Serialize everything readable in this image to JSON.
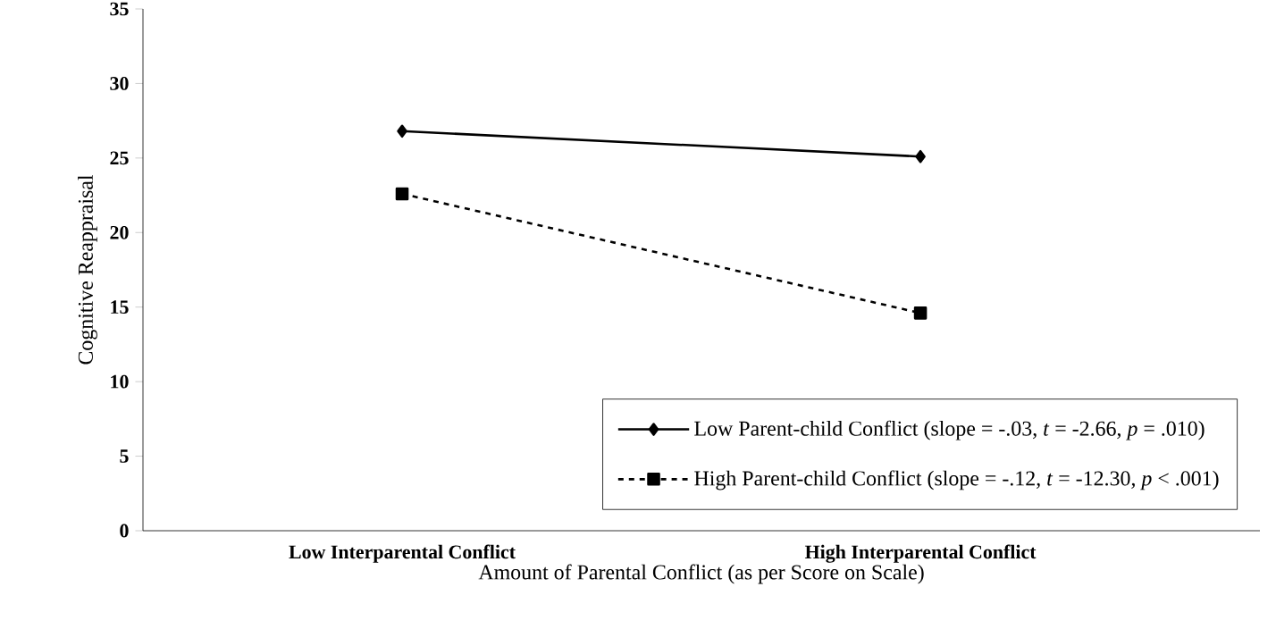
{
  "chart_data": {
    "type": "line",
    "xlabel": "Amount  of Parental Conflict (as per Score on Scale)",
    "ylabel": "Cognitive Reappraisal",
    "categories": [
      "Low Interparental Conflict",
      "High Interparental Conflict"
    ],
    "series": [
      {
        "name": "Low Parent-child Conflict (slope = -.03, *t* = -2.66, *p* = .010)",
        "color": "#000000",
        "values": [
          26.8,
          25.1
        ],
        "marker": "diamond",
        "line_style": "solid"
      },
      {
        "name": "High Parent-child Conflict (slope = -.12, *t* = -12.30, *p* < .001)",
        "color": "#000000",
        "values": [
          22.6,
          14.6
        ],
        "marker": "square",
        "line_style": "dashed"
      }
    ],
    "ylim": [
      0,
      35
    ],
    "yticks": [
      0,
      5,
      10,
      15,
      20,
      25,
      30,
      35
    ],
    "grid": false,
    "legend": "bottom right"
  }
}
